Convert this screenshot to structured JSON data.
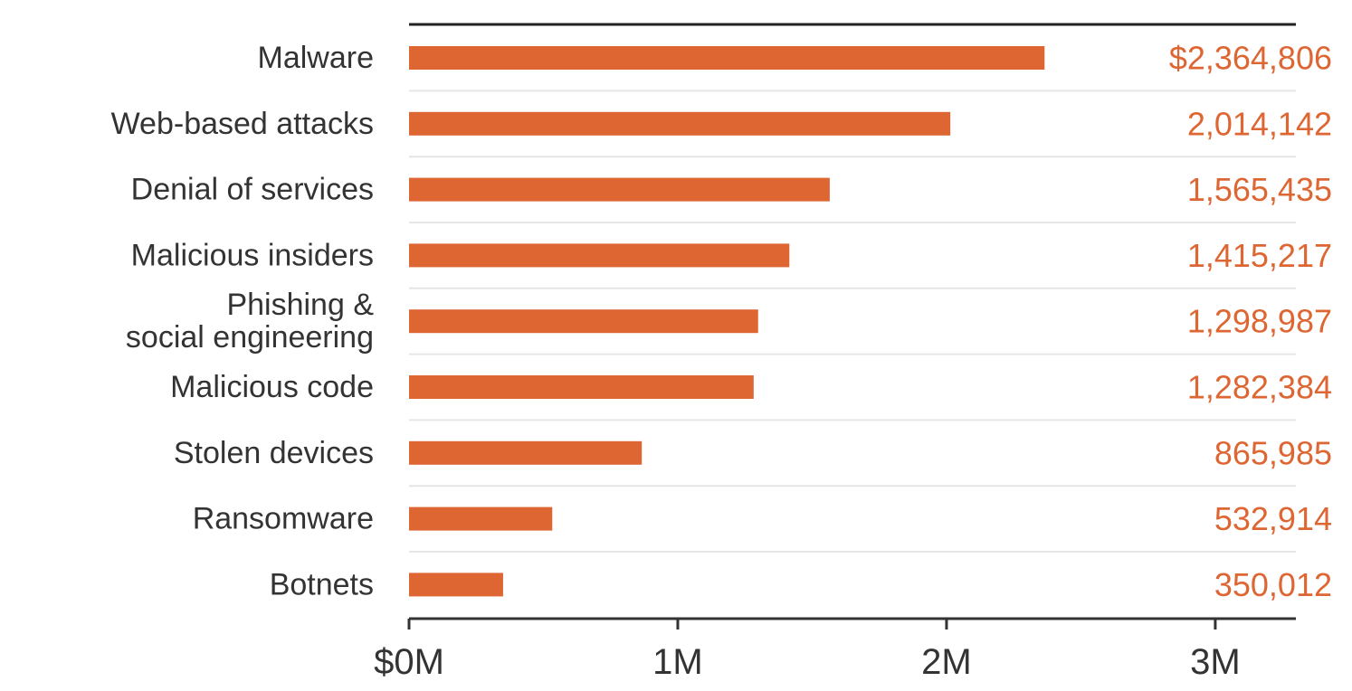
{
  "chart_data": {
    "type": "bar",
    "orientation": "horizontal",
    "categories": [
      "Malware",
      "Web-based attacks",
      "Denial of services",
      "Malicious insiders",
      "Phishing & social engineering",
      "Malicious code",
      "Stolen devices",
      "Ransomware",
      "Botnets"
    ],
    "category_lines": [
      [
        "Malware"
      ],
      [
        "Web-based attacks"
      ],
      [
        "Denial of services"
      ],
      [
        "Malicious insiders"
      ],
      [
        "Phishing &",
        "social engineering"
      ],
      [
        "Malicious code"
      ],
      [
        "Stolen devices"
      ],
      [
        "Ransomware"
      ],
      [
        "Botnets"
      ]
    ],
    "values": [
      2364806,
      2014142,
      1565435,
      1415217,
      1298987,
      1282384,
      865985,
      532914,
      350012
    ],
    "value_labels": [
      "$2,364,806",
      "2,014,142",
      "1,565,435",
      "1,415,217",
      "1,298,987",
      "1,282,384",
      "865,985",
      "532,914",
      "350,012"
    ],
    "x_ticks": [
      0,
      1000000,
      2000000,
      3000000
    ],
    "x_tick_labels": [
      "$0M",
      "1M",
      "2M",
      "3M"
    ],
    "xlim": [
      0,
      3300000
    ],
    "grid": true,
    "legend": "none",
    "colors": {
      "bar": "#dd6633",
      "value_text": "#dd6633",
      "axis": "#333333",
      "grid": "#e6e6e6"
    }
  }
}
